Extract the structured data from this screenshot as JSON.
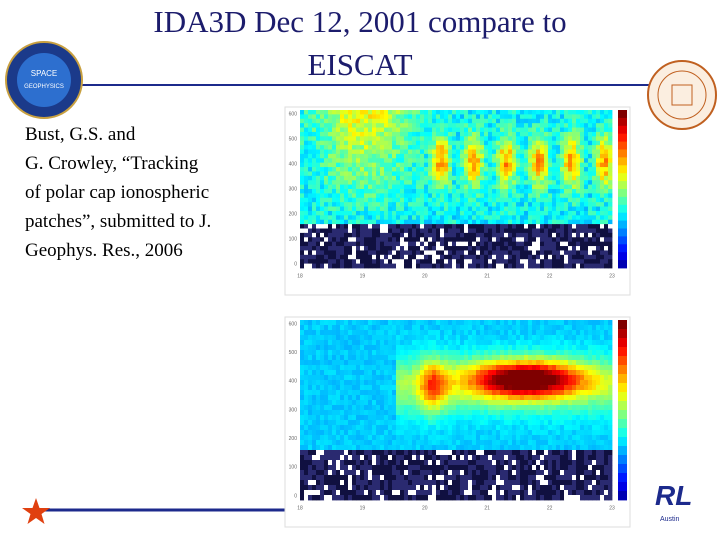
{
  "title": [
    "IDA3D Dec 12, 2001 compare to",
    "EISCAT"
  ],
  "citation": [
    "Bust, G.S. and",
    "G. Crowley, “Tracking",
    "of polar cap ionospheric",
    "patches”, submitted to J.",
    "Geophys. Res., 2006"
  ],
  "left_logo": [
    "SPACE",
    "GEOPHYSICS"
  ],
  "footer_logo": {
    "text": "RL",
    "sub": "Austin"
  },
  "panels": [
    {
      "yticks": [
        "600",
        "500",
        "400",
        "300",
        "200",
        "100",
        "0"
      ],
      "xticks": [
        "18",
        "19",
        "20",
        "21",
        "22",
        "23"
      ]
    },
    {
      "yticks": [
        "600",
        "500",
        "400",
        "300",
        "200",
        "100",
        "0"
      ],
      "xticks": [
        "18",
        "19",
        "20",
        "21",
        "22",
        "23"
      ]
    }
  ]
}
